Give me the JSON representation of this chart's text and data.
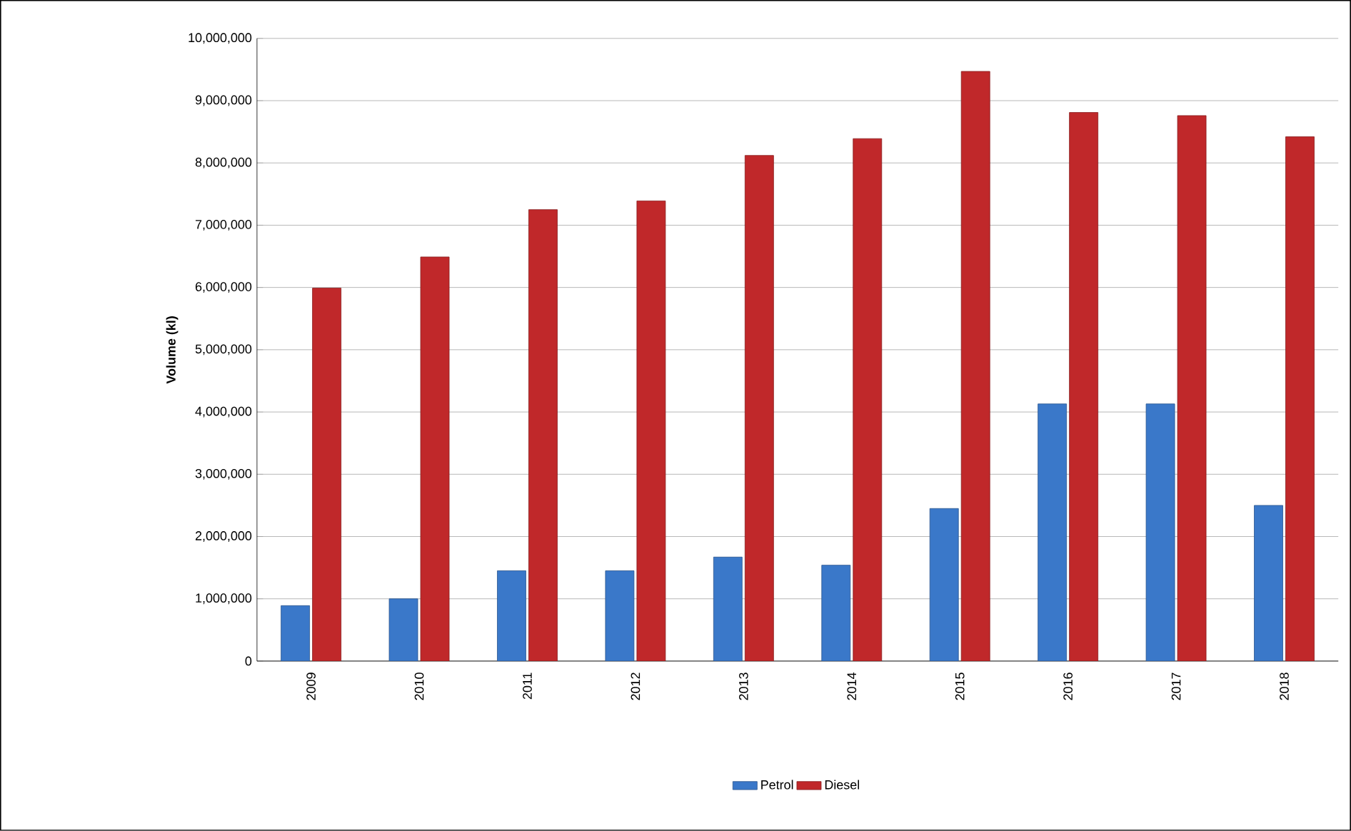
{
  "chart_data": {
    "type": "bar",
    "ylabel": "Volume (kl)",
    "categories": [
      "2009",
      "2010",
      "2011",
      "2012",
      "2013",
      "2014",
      "2015",
      "2016",
      "2017",
      "2018"
    ],
    "series": [
      {
        "name": "Petrol",
        "color": "#3a78c9",
        "values": [
          890000,
          1000000,
          1450000,
          1450000,
          1670000,
          1540000,
          2450000,
          4130000,
          4130000,
          2500000
        ]
      },
      {
        "name": "Diesel",
        "color": "#c0282a",
        "values": [
          5990000,
          6490000,
          7250000,
          7390000,
          8120000,
          8390000,
          9470000,
          8810000,
          8760000,
          8420000
        ]
      }
    ],
    "ylim": [
      0,
      10000000
    ],
    "yticks": [
      {
        "value": 0,
        "label": "0"
      },
      {
        "value": 1000000,
        "label": "1,000,000"
      },
      {
        "value": 2000000,
        "label": "2,000,000"
      },
      {
        "value": 3000000,
        "label": "3,000,000"
      },
      {
        "value": 4000000,
        "label": "4,000,000"
      },
      {
        "value": 5000000,
        "label": "5,000,000"
      },
      {
        "value": 6000000,
        "label": "6,000,000"
      },
      {
        "value": 7000000,
        "label": "7,000,000"
      },
      {
        "value": 8000000,
        "label": "8,000,000"
      },
      {
        "value": 9000000,
        "label": "9,000,000"
      },
      {
        "value": 10000000,
        "label": "10,000,000"
      }
    ],
    "grid": "y",
    "legend": "bottom"
  }
}
